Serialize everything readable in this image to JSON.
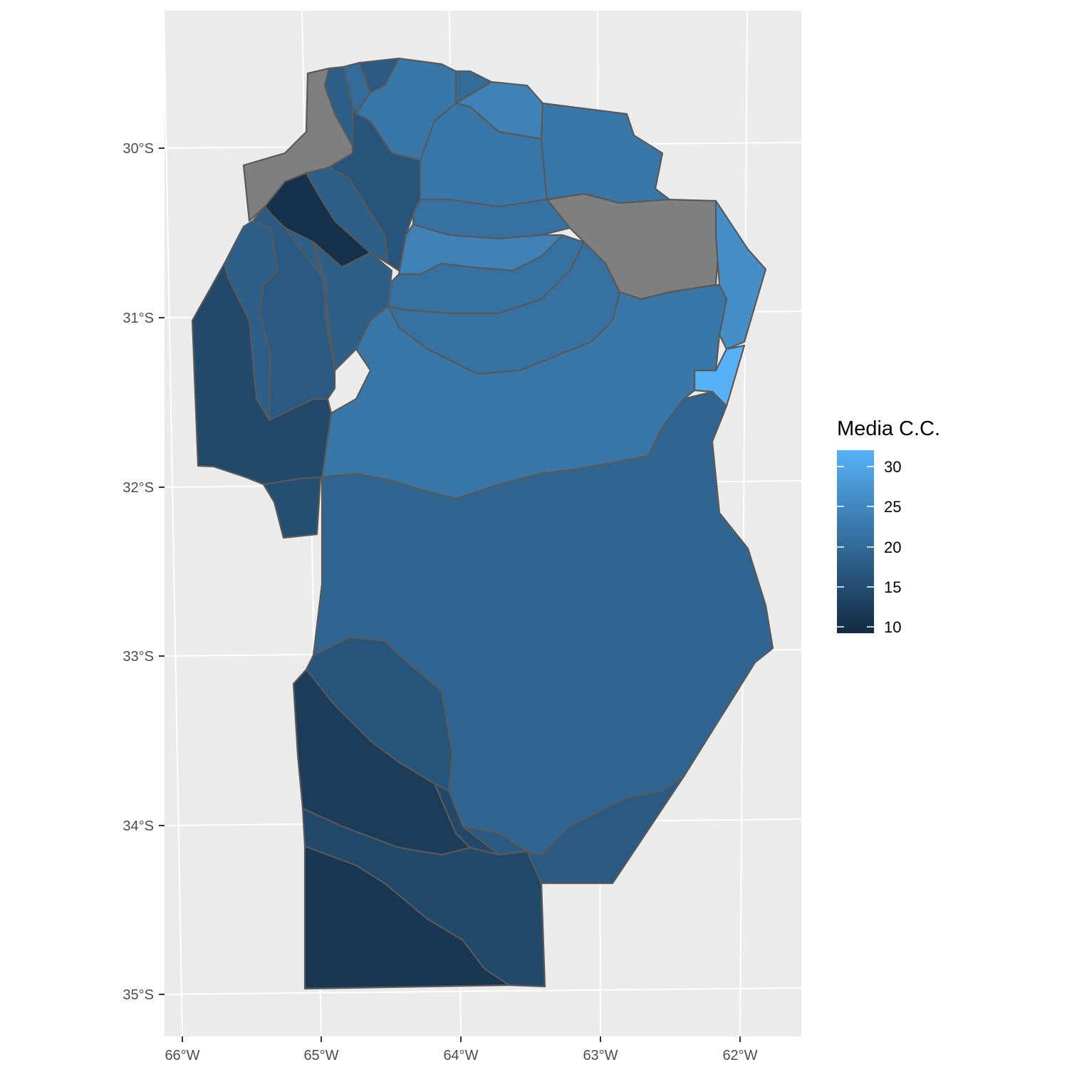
{
  "map": {
    "y_ticks": [
      "30°S",
      "31°S",
      "32°S",
      "33°S",
      "34°S",
      "35°S"
    ],
    "x_ticks": [
      "66°W",
      "65°W",
      "64°W",
      "63°W",
      "62°W"
    ],
    "legend": {
      "title": "Media C.C.",
      "tick_labels": [
        "30",
        "25",
        "20",
        "15",
        "10"
      ],
      "range": [
        9,
        32
      ],
      "color_low": "#132b43",
      "color_high": "#56b1f7"
    },
    "colors": {
      "panel_background": "#ebebeb",
      "gridline": "#ffffff",
      "border": "#595959",
      "na_fill": "#7f7f7f"
    }
  },
  "chart_data": {
    "type": "choropleth",
    "fill_variable": "Media C.C.",
    "scale": {
      "min": 9,
      "max": 32,
      "low": "#132b43",
      "high": "#56b1f7"
    },
    "na_color": "#7f7f7f",
    "regions": [
      {
        "id": "north-west-na",
        "value": null
      },
      {
        "id": "north-east-na",
        "value": null
      },
      {
        "id": "north-strip-1",
        "value": 18
      },
      {
        "id": "north-strip-2",
        "value": 20
      },
      {
        "id": "north-top-small",
        "value": 17
      },
      {
        "id": "north-center-large",
        "value": 22
      },
      {
        "id": "north-small-mid",
        "value": 20
      },
      {
        "id": "north-right-light",
        "value": 24
      },
      {
        "id": "north-center-2",
        "value": 22
      },
      {
        "id": "north-east",
        "value": 22
      },
      {
        "id": "ischilin-strip",
        "value": 16
      },
      {
        "id": "minas-dark",
        "value": 10
      },
      {
        "id": "cruz-del-eje-mid",
        "value": 18
      },
      {
        "id": "band-1",
        "value": 21
      },
      {
        "id": "band-2-light",
        "value": 24
      },
      {
        "id": "band-3",
        "value": 21
      },
      {
        "id": "east-edge",
        "value": 26
      },
      {
        "id": "east-edge-lightest",
        "value": 32
      },
      {
        "id": "west-1",
        "value": 18
      },
      {
        "id": "west-2",
        "value": 17
      },
      {
        "id": "west-3",
        "value": 18
      },
      {
        "id": "west-4",
        "value": 19
      },
      {
        "id": "central-south-west",
        "value": 20
      },
      {
        "id": "central-large",
        "value": 22
      },
      {
        "id": "central-band",
        "value": 22
      },
      {
        "id": "central-upper-band",
        "value": 21
      },
      {
        "id": "far-west",
        "value": 14
      },
      {
        "id": "west-small-south",
        "value": 15
      },
      {
        "id": "south-large",
        "value": 19
      },
      {
        "id": "south-west-1",
        "value": 16
      },
      {
        "id": "south-west-2",
        "value": 12
      },
      {
        "id": "south-middle",
        "value": 14
      },
      {
        "id": "south-east-small",
        "value": 17
      },
      {
        "id": "south-south",
        "value": 14
      },
      {
        "id": "south-tip",
        "value": 11
      }
    ]
  }
}
